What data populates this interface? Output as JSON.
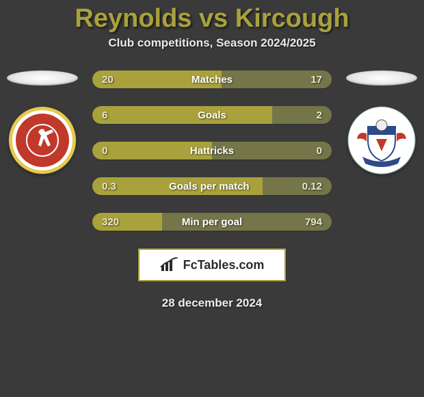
{
  "title_color": "#a9a13b",
  "title": "Reynolds vs Kircough",
  "subtitle": "Club competitions, Season 2024/2025",
  "left_color": "#a9a13b",
  "right_color": "#74764a",
  "stats": [
    {
      "label": "Matches",
      "left_val": "20",
      "right_val": "17",
      "left_pct": 54,
      "right_pct": 46
    },
    {
      "label": "Goals",
      "left_val": "6",
      "right_val": "2",
      "left_pct": 75,
      "right_pct": 25
    },
    {
      "label": "Hattricks",
      "left_val": "0",
      "right_val": "0",
      "left_pct": 50,
      "right_pct": 50
    },
    {
      "label": "Goals per match",
      "left_val": "0.3",
      "right_val": "0.12",
      "left_pct": 71,
      "right_pct": 29
    },
    {
      "label": "Min per goal",
      "left_val": "320",
      "right_val": "794",
      "left_pct": 29,
      "right_pct": 71
    }
  ],
  "brand_label": "FcTables.com",
  "date": "28 december 2024",
  "club_left": {
    "outer_color": "#e8c94b",
    "inner_color": "#c0392b",
    "ring_color": "#ffffff"
  },
  "club_right": {
    "outer_color": "#ffffff",
    "accent1": "#c0392b",
    "accent2": "#2e4a8a"
  }
}
